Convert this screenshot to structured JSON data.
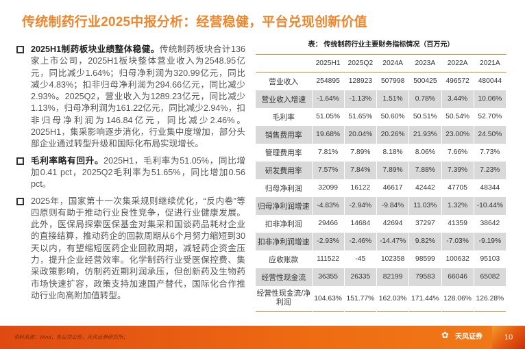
{
  "title": "传统制药行业2025中报分析：经营稳健，平台兑现创新价值",
  "bullets": [
    {
      "head": "2025H1制药板块业绩整体稳健。",
      "text": "传统制药板块合计136家上市公司，2025H1板块整体营业收入为2548.95亿元，同比减少1.64%；归母净利润为320.99亿元，同比减少4.83%；扣非归母净利润为294.66亿元，同比减少2.93%。2025Q2，营业收入为1289.23亿元，同比减少1.13%，归母净利润为161.22亿元，同比减少2.94%，扣非归母净利润为146.84亿元，同比减少2.46%。2025H1，集采影响逐步消化，行业集中度增加，部分头部企业通过转型升级和国际化布局实现增长。"
    },
    {
      "head": "毛利率略有回升。",
      "text": "2025H1，毛利率为51.05%，同比增加0.41 pct，2025Q2毛利率为51.65%，同比增加0.56 pct。"
    },
    {
      "head": "",
      "text": "2025年，国家第十一次集采规则继续优化，“反内卷”等四原则有助于推动行业良性竞争，促进行业健康发展。此外，医保局探索医保基金对集采和国谈药品耗材企业的直接结算，推动药企的回款周期从6个月努力缩短到30天以内，有望缩短医药企业回款周期，减轻药企资金压力，提升企业经营效率。化学制药行业受医保控费、集采政策影响，仿制药近期利润承压，但创新药及生物药市场快速扩容，政策支持加速国产替代，国际化合作推动行业向高附加值转型。"
    }
  ],
  "table": {
    "caption": "表：  传统制药行业主要财务指标情况（百万元）",
    "columns": [
      "",
      "2025H1",
      "2025Q2",
      "2024A",
      "2023A",
      "2022A",
      "2021A"
    ],
    "rows": [
      [
        "营业收入",
        "254895",
        "128923",
        "507998",
        "500425",
        "496572",
        "480044"
      ],
      [
        "营业收入增速",
        "-1.64%",
        "-1.13%",
        "1.51%",
        "0.78%",
        "3.44%",
        "10.06%"
      ],
      [
        "毛利率",
        "51.05%",
        "51.65%",
        "50.60%",
        "50.51%",
        "50.54%",
        "52.70%"
      ],
      [
        "销售费用率",
        "19.68%",
        "20.04%",
        "20.26%",
        "21.93%",
        "23.00%",
        "24.50%"
      ],
      [
        "管理费用率",
        "7.81%",
        "7.89%",
        "8.18%",
        "8.06%",
        "7.66%",
        "7.73%"
      ],
      [
        "研发费用率",
        "7.57%",
        "7.84%",
        "7.89%",
        "7.88%",
        "7.39%",
        "7.23%"
      ],
      [
        "归母净利润",
        "32099",
        "16122",
        "46617",
        "42442",
        "47705",
        "48344"
      ],
      [
        "归母净利润增速",
        "-4.83%",
        "-2.94%",
        "-9.84%",
        "11.03%",
        "1.32%",
        "-10.44%"
      ],
      [
        "扣非净利润",
        "29466",
        "14684",
        "42694",
        "37297",
        "41359",
        "38642"
      ],
      [
        "扣非净利润增速",
        "-2.93%",
        "-2.46%",
        "-14.47%",
        "9.82%",
        "-7.03%",
        "-9.19%"
      ],
      [
        "应收账款",
        "111522",
        "-45",
        "102358",
        "98599",
        "100632",
        "95103"
      ],
      [
        "经营性现金流",
        "36355",
        "26335",
        "82199",
        "79583",
        "66046",
        "65082"
      ],
      [
        "经营性现金流/净利润",
        "104.63%",
        "151.77%",
        "162.03%",
        "171.44%",
        "128.06%",
        "126.28%"
      ]
    ]
  },
  "footer": {
    "source": "资料来源：Wind，各公司公告，天风证券研究所；",
    "logo": "天风证券",
    "logo_sub": "TF SECURITIES",
    "page": "10"
  },
  "colors": {
    "accent": "#f0852c",
    "footer": "#e85c12"
  }
}
